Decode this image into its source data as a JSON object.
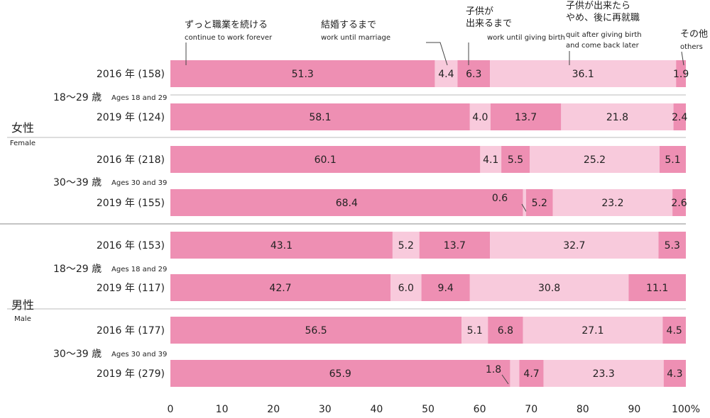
{
  "colors": {
    "dark": "#ee8fb3",
    "light": "#f8cadc",
    "background": "#ffffff",
    "divider": "#bbbbbb",
    "separator": "#888888",
    "text": "#222222"
  },
  "legend": [
    {
      "jp": "ずっと職業を続ける",
      "en": "continue to work forever"
    },
    {
      "jp": "結婚するまで",
      "en": "work until marriage"
    },
    {
      "jp": "子供が 出来るまで",
      "en": "work until giving birth"
    },
    {
      "jp": "子供が出来たら やめ、後に再就職",
      "en": "quit after giving birth and come back later"
    },
    {
      "jp": "その他",
      "en": "others"
    }
  ],
  "chart_data": {
    "type": "bar",
    "orientation": "horizontal-stacked",
    "xlim": [
      0,
      100
    ],
    "xticks": [
      "0",
      "10",
      "20",
      "30",
      "40",
      "50",
      "60",
      "70",
      "80",
      "90",
      "100%"
    ],
    "series": [
      {
        "name": "continue to work forever"
      },
      {
        "name": "work until marriage"
      },
      {
        "name": "work until giving birth"
      },
      {
        "name": "quit after giving birth and come back later"
      },
      {
        "name": "others"
      }
    ],
    "genders": [
      {
        "jp": "女性",
        "en": "Female",
        "groups": [
          {
            "jp": "18～29 歳",
            "en": "Ages 18 and 29",
            "rows": [
              {
                "label": "2016 年 (158)",
                "values": [
                  51.3,
                  4.4,
                  6.3,
                  36.1,
                  1.9
                ],
                "labels": [
                  "51.3",
                  "4.4",
                  "6.3",
                  "36.1",
                  "1.9"
                ]
              },
              {
                "label": "2019 年 (124)",
                "values": [
                  58.1,
                  4.0,
                  13.7,
                  21.8,
                  2.4
                ],
                "labels": [
                  "58.1",
                  "4.0",
                  "13.7",
                  "21.8",
                  "2.4"
                ]
              }
            ]
          },
          {
            "jp": "30～39 歳",
            "en": "Ages 30 and 39",
            "rows": [
              {
                "label": "2016 年 (218)",
                "values": [
                  60.1,
                  4.1,
                  5.5,
                  25.2,
                  5.1
                ],
                "labels": [
                  "60.1",
                  "4.1",
                  "5.5",
                  "25.2",
                  "5.1"
                ]
              },
              {
                "label": "2019 年 (155)",
                "values": [
                  68.4,
                  0.6,
                  5.2,
                  23.2,
                  2.6
                ],
                "labels": [
                  "68.4",
                  "0.6",
                  "5.2",
                  "23.2",
                  "2.6"
                ]
              }
            ]
          }
        ]
      },
      {
        "jp": "男性",
        "en": "Male",
        "groups": [
          {
            "jp": "18～29 歳",
            "en": "Ages 18 and 29",
            "rows": [
              {
                "label": "2016 年 (153)",
                "values": [
                  43.1,
                  5.2,
                  13.7,
                  32.7,
                  5.3
                ],
                "labels": [
                  "43.1",
                  "5.2",
                  "13.7",
                  "32.7",
                  "5.3"
                ]
              },
              {
                "label": "2019 年 (117)",
                "values": [
                  42.7,
                  6.0,
                  9.4,
                  30.8,
                  11.1
                ],
                "labels": [
                  "42.7",
                  "6.0",
                  "9.4",
                  "30.8",
                  "11.1"
                ]
              }
            ]
          },
          {
            "jp": "30～39 歳",
            "en": "Ages 30 and 39",
            "rows": [
              {
                "label": "2016 年 (177)",
                "values": [
                  56.5,
                  5.1,
                  6.8,
                  27.1,
                  4.5
                ],
                "labels": [
                  "56.5",
                  "5.1",
                  "6.8",
                  "27.1",
                  "4.5"
                ]
              },
              {
                "label": "2019 年 (279)",
                "values": [
                  65.9,
                  1.8,
                  4.7,
                  23.3,
                  4.3
                ],
                "labels": [
                  "65.9",
                  "1.8",
                  "4.7",
                  "23.3",
                  "4.3"
                ]
              }
            ]
          }
        ]
      }
    ]
  }
}
